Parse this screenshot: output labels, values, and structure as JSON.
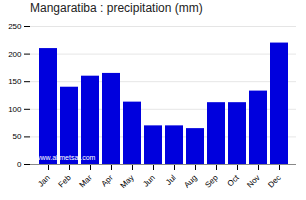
{
  "chart_data": {
    "type": "bar",
    "title": "Mangaratiba : precipitation (mm)",
    "categories": [
      "Jan",
      "Feb",
      "Mar",
      "Apr",
      "May",
      "Jun",
      "Jul",
      "Aug",
      "Sep",
      "Oct",
      "Nov",
      "Dec"
    ],
    "values": [
      210,
      140,
      160,
      165,
      113,
      70,
      70,
      65,
      112,
      112,
      133,
      220
    ],
    "color": "#0000dd",
    "ylim": [
      0,
      250
    ],
    "yticks": [
      0,
      50,
      100,
      150,
      200,
      250
    ],
    "grid": true,
    "annotation": "www.allmetsat.com"
  }
}
